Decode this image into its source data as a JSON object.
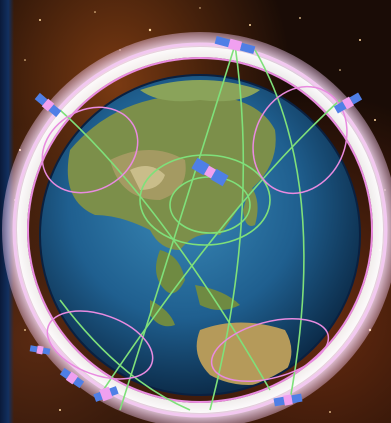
{
  "scene": {
    "subject": "satellite-constellation-around-earth",
    "satellite_count": 8,
    "colors": {
      "space_background": "#1a0c06",
      "nebula_glow": "#7a3a12",
      "ocean": "#1f5f8f",
      "land": "#7c8f4a",
      "outer_ring": "#f2c8f0",
      "orbit_green": "#7fe07a",
      "orbit_pink": "#e98be0",
      "satellite_panel": "#4f7fe6",
      "satellite_body": "#f0a0f0"
    },
    "icons": [
      "earth-globe",
      "satellite-icon",
      "orbit-ring",
      "star-field"
    ]
  }
}
